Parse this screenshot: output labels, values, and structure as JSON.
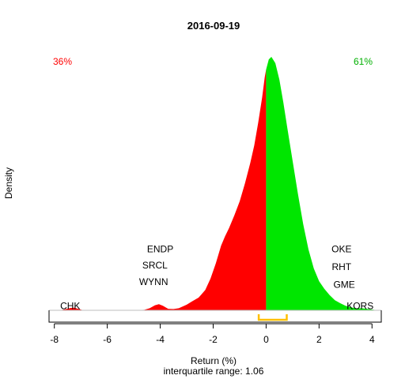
{
  "chart_data": {
    "type": "area",
    "title": "2016-09-19",
    "xlabel": "Return (%)",
    "ylabel": "Density",
    "subtitle": "interquartile range: 1.06",
    "xlim": [
      -8.2,
      4.35
    ],
    "ylim": [
      0,
      1
    ],
    "x_ticks": [
      -8,
      -6,
      -4,
      -2,
      0,
      2,
      4
    ],
    "x_tick_labels": [
      "-8",
      "-6",
      "-4",
      "-2",
      "0",
      "2",
      "4"
    ],
    "split_at": 0,
    "negative_share_label": "36%",
    "positive_share_label": "61%",
    "colors": {
      "negative": "#ff0000",
      "positive": "#00e600",
      "iqr_bracket": "#ffbf00",
      "baseline": "#bebebe",
      "axis": "#000000",
      "text": "#000000"
    },
    "iqr": [
      -0.28,
      0.78
    ],
    "density": [
      [
        -8.2,
        0
      ],
      [
        -7.8,
        0.0
      ],
      [
        -7.6,
        0.004
      ],
      [
        -7.4,
        0.009
      ],
      [
        -7.25,
        0.01
      ],
      [
        -7.1,
        0.006
      ],
      [
        -6.9,
        0.0
      ],
      [
        -5.0,
        0.0
      ],
      [
        -4.6,
        0.002
      ],
      [
        -4.4,
        0.008
      ],
      [
        -4.2,
        0.02
      ],
      [
        -4.05,
        0.024
      ],
      [
        -3.9,
        0.018
      ],
      [
        -3.7,
        0.006
      ],
      [
        -3.5,
        0.005
      ],
      [
        -3.3,
        0.008
      ],
      [
        -3.0,
        0.022
      ],
      [
        -2.8,
        0.035
      ],
      [
        -2.55,
        0.05
      ],
      [
        -2.3,
        0.08
      ],
      [
        -2.1,
        0.125
      ],
      [
        -1.9,
        0.185
      ],
      [
        -1.7,
        0.255
      ],
      [
        -1.55,
        0.292
      ],
      [
        -1.4,
        0.325
      ],
      [
        -1.2,
        0.375
      ],
      [
        -1.0,
        0.43
      ],
      [
        -0.8,
        0.5
      ],
      [
        -0.6,
        0.58
      ],
      [
        -0.45,
        0.65
      ],
      [
        -0.3,
        0.74
      ],
      [
        -0.15,
        0.84
      ],
      [
        -0.05,
        0.92
      ],
      [
        0.0,
        0.95
      ],
      [
        0.1,
        0.99
      ],
      [
        0.2,
        1.0
      ],
      [
        0.35,
        0.975
      ],
      [
        0.5,
        0.91
      ],
      [
        0.65,
        0.82
      ],
      [
        0.8,
        0.72
      ],
      [
        1.0,
        0.59
      ],
      [
        1.2,
        0.46
      ],
      [
        1.4,
        0.34
      ],
      [
        1.6,
        0.24
      ],
      [
        1.8,
        0.165
      ],
      [
        2.0,
        0.115
      ],
      [
        2.2,
        0.085
      ],
      [
        2.4,
        0.06
      ],
      [
        2.6,
        0.04
      ],
      [
        2.8,
        0.028
      ],
      [
        3.0,
        0.018
      ],
      [
        3.2,
        0.012
      ],
      [
        3.4,
        0.007
      ],
      [
        3.6,
        0.008
      ],
      [
        3.8,
        0.006
      ],
      [
        4.0,
        0.003
      ],
      [
        4.2,
        0.0
      ],
      [
        4.35,
        0.0
      ]
    ],
    "annotations": [
      {
        "text": "CHK",
        "x": -7.4,
        "y": -0.005
      },
      {
        "text": "WYNN",
        "x": -4.25,
        "y": 0.09
      },
      {
        "text": "SRCL",
        "x": -4.2,
        "y": 0.155
      },
      {
        "text": "ENDP",
        "x": -4.0,
        "y": 0.22
      },
      {
        "text": "KORS",
        "x": 3.55,
        "y": -0.005
      },
      {
        "text": "GME",
        "x": 2.95,
        "y": 0.08
      },
      {
        "text": "RHT",
        "x": 2.85,
        "y": 0.15
      },
      {
        "text": "OKE",
        "x": 2.85,
        "y": 0.22
      }
    ]
  }
}
